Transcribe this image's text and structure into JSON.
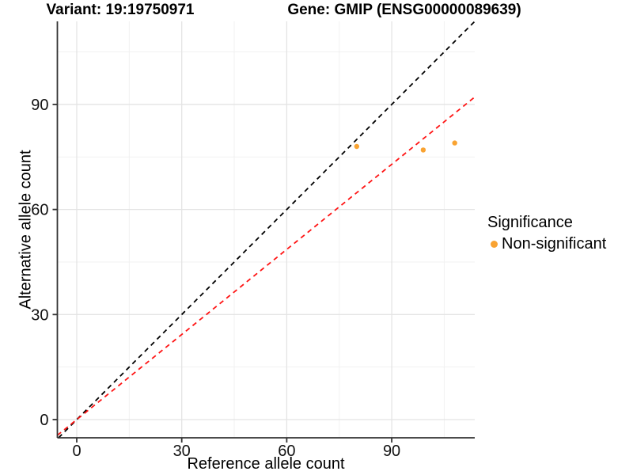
{
  "chart_data": {
    "type": "scatter",
    "title_left": "Variant: 19:19750971",
    "title_right": "Gene: GMIP (ENSG00000089639)",
    "xlabel": "Reference allele count",
    "ylabel": "Alternative allele count",
    "x_ticks": [
      0,
      30,
      60,
      90
    ],
    "y_ticks": [
      0,
      30,
      60,
      90
    ],
    "x_minor": [
      15,
      45,
      75,
      105
    ],
    "y_minor": [
      15,
      45,
      75,
      105
    ],
    "xlim": [
      -5.5,
      113.7
    ],
    "ylim": [
      -5.2,
      113.7
    ],
    "grid": "major+minor on white, light gray",
    "series": [
      {
        "name": "Non-significant",
        "color": "#F9A332",
        "points": [
          {
            "x": 80,
            "y": 78
          },
          {
            "x": 99,
            "y": 77
          },
          {
            "x": 108,
            "y": 79
          }
        ]
      }
    ],
    "lines": [
      {
        "name": "identity-line",
        "slope": 1.0,
        "intercept": 0,
        "color": "#000000",
        "style": "dashed"
      },
      {
        "name": "fit-line",
        "slope": 0.81,
        "intercept": 0,
        "color": "#FF1414",
        "style": "dashed"
      }
    ],
    "legend": {
      "title": "Significance",
      "position": "right",
      "items": [
        {
          "label": "Non-significant",
          "color": "#F9A332"
        }
      ]
    },
    "colors": {
      "axis_line": "#333333",
      "tick_text": "#111111",
      "grid_major": "#E4E4E4",
      "grid_minor": "#F1F1F1",
      "background": "#FFFFFF"
    }
  }
}
